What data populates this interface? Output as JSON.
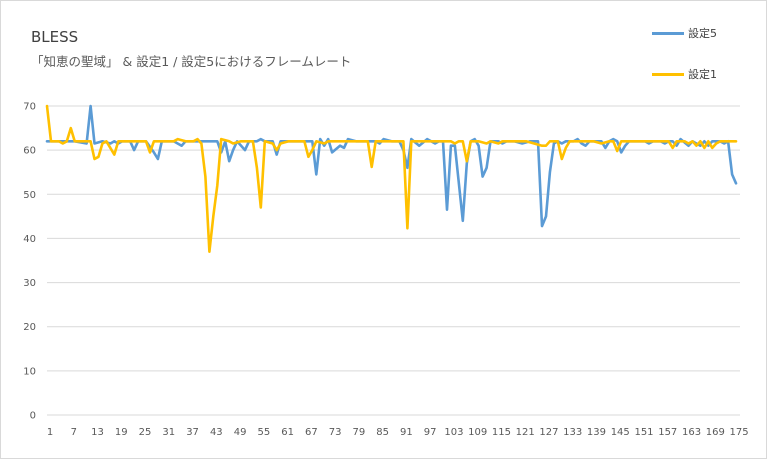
{
  "chart_data": {
    "type": "line",
    "title": "BLESS",
    "subtitle": "「知恵の聖域」 & 設定1 / 設定5におけるフレームレート",
    "xlabel": "",
    "ylabel": "",
    "ylim": [
      0,
      70
    ],
    "yticks": [
      0,
      10,
      20,
      30,
      40,
      50,
      60,
      70
    ],
    "xticks": [
      1,
      7,
      13,
      19,
      25,
      31,
      37,
      43,
      49,
      55,
      61,
      67,
      73,
      79,
      85,
      91,
      97,
      103,
      109,
      115,
      121,
      127,
      133,
      139,
      145,
      151,
      157,
      163,
      169,
      175
    ],
    "xlim": [
      1,
      176
    ],
    "grid": "horizontal",
    "legend": "top-right",
    "series": [
      {
        "name": "設定5",
        "color": "#5b9bd5",
        "points": [
          [
            1,
            62
          ],
          [
            4,
            62
          ],
          [
            8,
            62
          ],
          [
            11,
            61.5
          ],
          [
            12,
            70
          ],
          [
            13,
            61.5
          ],
          [
            15,
            62
          ],
          [
            17,
            61.5
          ],
          [
            18,
            62
          ],
          [
            19,
            61.5
          ],
          [
            20,
            62
          ],
          [
            22,
            62
          ],
          [
            23,
            60
          ],
          [
            24,
            62
          ],
          [
            26,
            62
          ],
          [
            28,
            59.5
          ],
          [
            29,
            58
          ],
          [
            30,
            62
          ],
          [
            33,
            62
          ],
          [
            35,
            61
          ],
          [
            36,
            62
          ],
          [
            40,
            62
          ],
          [
            42,
            62
          ],
          [
            44,
            62
          ],
          [
            45,
            59.5
          ],
          [
            46,
            62
          ],
          [
            47,
            57.5
          ],
          [
            48,
            60
          ],
          [
            49,
            62
          ],
          [
            51,
            60
          ],
          [
            52,
            62
          ],
          [
            54,
            62
          ],
          [
            55,
            62.5
          ],
          [
            56,
            62
          ],
          [
            58,
            62
          ],
          [
            59,
            59
          ],
          [
            60,
            62
          ],
          [
            62,
            62
          ],
          [
            66,
            62
          ],
          [
            68,
            62
          ],
          [
            69,
            54.5
          ],
          [
            70,
            62.5
          ],
          [
            71,
            61
          ],
          [
            72,
            62.5
          ],
          [
            73,
            59.5
          ],
          [
            75,
            61
          ],
          [
            76,
            60.5
          ],
          [
            77,
            62.5
          ],
          [
            79,
            62
          ],
          [
            81,
            62
          ],
          [
            84,
            62
          ],
          [
            85,
            61.5
          ],
          [
            86,
            62.5
          ],
          [
            88,
            62
          ],
          [
            89,
            62
          ],
          [
            90,
            62
          ],
          [
            91,
            60
          ],
          [
            92,
            56
          ],
          [
            93,
            62.5
          ],
          [
            95,
            61
          ],
          [
            97,
            62.5
          ],
          [
            98,
            62
          ],
          [
            99,
            61.5
          ],
          [
            100,
            62
          ],
          [
            101,
            62
          ],
          [
            102,
            46.5
          ],
          [
            103,
            61
          ],
          [
            104,
            61
          ],
          [
            106,
            44
          ],
          [
            107,
            57
          ],
          [
            108,
            62
          ],
          [
            109,
            62.5
          ],
          [
            110,
            61
          ],
          [
            111,
            54
          ],
          [
            112,
            56
          ],
          [
            113,
            62
          ],
          [
            115,
            62
          ],
          [
            116,
            61.5
          ],
          [
            117,
            62
          ],
          [
            119,
            62
          ],
          [
            121,
            61.5
          ],
          [
            123,
            62
          ],
          [
            124,
            62
          ],
          [
            125,
            62
          ],
          [
            126,
            42.8
          ],
          [
            127,
            45
          ],
          [
            128,
            55
          ],
          [
            129,
            61.5
          ],
          [
            130,
            62
          ],
          [
            131,
            61.5
          ],
          [
            132,
            62
          ],
          [
            134,
            62
          ],
          [
            135,
            62.5
          ],
          [
            136,
            61.5
          ],
          [
            137,
            61
          ],
          [
            138,
            62
          ],
          [
            140,
            62
          ],
          [
            141,
            62
          ],
          [
            142,
            60.5
          ],
          [
            143,
            62
          ],
          [
            144,
            62.5
          ],
          [
            145,
            62
          ],
          [
            146,
            59.5
          ],
          [
            147,
            61
          ],
          [
            148,
            62
          ],
          [
            150,
            62
          ],
          [
            152,
            62
          ],
          [
            153,
            61.5
          ],
          [
            154,
            62
          ],
          [
            156,
            62
          ],
          [
            157,
            61.5
          ],
          [
            158,
            62
          ],
          [
            159,
            62
          ],
          [
            160,
            61
          ],
          [
            161,
            62.5
          ],
          [
            163,
            61
          ],
          [
            164,
            62
          ],
          [
            165,
            61.5
          ],
          [
            166,
            61
          ],
          [
            167,
            62
          ],
          [
            168,
            61
          ],
          [
            169,
            62
          ],
          [
            171,
            62
          ],
          [
            172,
            61.5
          ],
          [
            173,
            62
          ],
          [
            174,
            54.5
          ],
          [
            175,
            52.5
          ]
        ]
      },
      {
        "name": "設定1",
        "color": "#ffc000",
        "points": [
          [
            1,
            70
          ],
          [
            2,
            62
          ],
          [
            4,
            62
          ],
          [
            5,
            61.5
          ],
          [
            6,
            62
          ],
          [
            7,
            65
          ],
          [
            8,
            62
          ],
          [
            10,
            62
          ],
          [
            11,
            62
          ],
          [
            12,
            62
          ],
          [
            13,
            58
          ],
          [
            14,
            58.5
          ],
          [
            15,
            61.5
          ],
          [
            16,
            62
          ],
          [
            18,
            59
          ],
          [
            19,
            62
          ],
          [
            21,
            62
          ],
          [
            22,
            62
          ],
          [
            24,
            62
          ],
          [
            26,
            62
          ],
          [
            27,
            59.5
          ],
          [
            28,
            62
          ],
          [
            30,
            62
          ],
          [
            32,
            62
          ],
          [
            33,
            62
          ],
          [
            34,
            62.5
          ],
          [
            36,
            62
          ],
          [
            38,
            62
          ],
          [
            39,
            62.5
          ],
          [
            40,
            61.5
          ],
          [
            41,
            54
          ],
          [
            42,
            37
          ],
          [
            43,
            45
          ],
          [
            44,
            52
          ],
          [
            45,
            62.5
          ],
          [
            47,
            62
          ],
          [
            48,
            61.5
          ],
          [
            50,
            62
          ],
          [
            52,
            62
          ],
          [
            53,
            62
          ],
          [
            54,
            56
          ],
          [
            55,
            47
          ],
          [
            56,
            62
          ],
          [
            58,
            61.5
          ],
          [
            59,
            60
          ],
          [
            60,
            61.5
          ],
          [
            62,
            62
          ],
          [
            64,
            62
          ],
          [
            66,
            62
          ],
          [
            67,
            58.5
          ],
          [
            68,
            60
          ],
          [
            69,
            62
          ],
          [
            71,
            61.5
          ],
          [
            72,
            62
          ],
          [
            74,
            62
          ],
          [
            76,
            62
          ],
          [
            78,
            62
          ],
          [
            80,
            62
          ],
          [
            82,
            62
          ],
          [
            83,
            56.2
          ],
          [
            84,
            62
          ],
          [
            86,
            62
          ],
          [
            88,
            62
          ],
          [
            90,
            62
          ],
          [
            91,
            62
          ],
          [
            92,
            42.3
          ],
          [
            93,
            62
          ],
          [
            95,
            62
          ],
          [
            97,
            62
          ],
          [
            99,
            62
          ],
          [
            101,
            62
          ],
          [
            103,
            62
          ],
          [
            104,
            61.5
          ],
          [
            105,
            62
          ],
          [
            106,
            62
          ],
          [
            107,
            57.5
          ],
          [
            108,
            62
          ],
          [
            110,
            62
          ],
          [
            112,
            61.5
          ],
          [
            113,
            62
          ],
          [
            115,
            61.5
          ],
          [
            116,
            62
          ],
          [
            118,
            62
          ],
          [
            120,
            62
          ],
          [
            122,
            62
          ],
          [
            124,
            61.5
          ],
          [
            126,
            61
          ],
          [
            127,
            61
          ],
          [
            128,
            62
          ],
          [
            130,
            62
          ],
          [
            131,
            58
          ],
          [
            132,
            60.5
          ],
          [
            133,
            62
          ],
          [
            135,
            62
          ],
          [
            137,
            62
          ],
          [
            139,
            62
          ],
          [
            141,
            61.5
          ],
          [
            143,
            62
          ],
          [
            144,
            62
          ],
          [
            145,
            59.8
          ],
          [
            146,
            62
          ],
          [
            148,
            62
          ],
          [
            150,
            62
          ],
          [
            152,
            62
          ],
          [
            154,
            62
          ],
          [
            156,
            62
          ],
          [
            158,
            62
          ],
          [
            159,
            60.5
          ],
          [
            160,
            62
          ],
          [
            162,
            62
          ],
          [
            163,
            61.5
          ],
          [
            164,
            62
          ],
          [
            165,
            61
          ],
          [
            166,
            62
          ],
          [
            167,
            60.5
          ],
          [
            168,
            62
          ],
          [
            169,
            60.5
          ],
          [
            170,
            61.5
          ],
          [
            171,
            62
          ],
          [
            173,
            62
          ],
          [
            175,
            62
          ]
        ]
      }
    ]
  }
}
